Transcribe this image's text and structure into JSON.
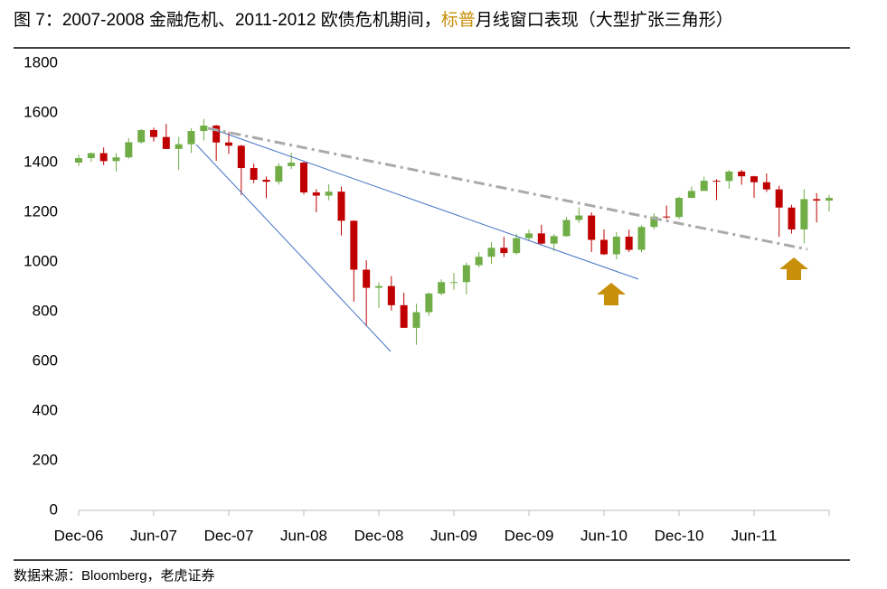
{
  "chart_data": {
    "type": "candlestick",
    "title_parts": [
      "图 7：2007-2008 金融危机、2011-2012 欧债危机期间，",
      "标普",
      "月线窗口表现（大型扩张三角形）"
    ],
    "title_highlight_color": "#c8900a",
    "source": "数据来源：Bloomberg，老虎证券",
    "categories": [
      "Dec-06",
      null,
      null,
      null,
      null,
      null,
      "Jun-07",
      null,
      null,
      null,
      null,
      null,
      "Dec-07",
      null,
      null,
      null,
      null,
      null,
      "Jun-08",
      null,
      null,
      null,
      null,
      null,
      "Dec-08",
      null,
      null,
      null,
      null,
      null,
      "Jun-09",
      null,
      null,
      null,
      null,
      null,
      "Dec-09",
      null,
      null,
      null,
      null,
      null,
      "Jun-10",
      null,
      null,
      null,
      null,
      null,
      "Dec-10",
      null,
      null,
      null,
      null,
      null,
      "Jun-11",
      null,
      null,
      null,
      null,
      null,
      null
    ],
    "open": [
      1400,
      1418,
      1438,
      1406,
      1421,
      1482,
      1531,
      1503,
      1455,
      1474,
      1527,
      1549,
      1481,
      1468,
      1378,
      1331,
      1323,
      1386,
      1400,
      1280,
      1267,
      1283,
      1166,
      969,
      896,
      903,
      826,
      735,
      798,
      873,
      919,
      919,
      987,
      1021,
      1057,
      1036,
      1096,
      1115,
      1074,
      1104,
      1169,
      1187,
      1089,
      1031,
      1102,
      1049,
      1141,
      1183,
      1181,
      1258,
      1286,
      1327,
      1326,
      1364,
      1345,
      1321,
      1292,
      1219,
      1131,
      1253,
      1247
    ],
    "high": [
      1431,
      1441,
      1461,
      1438,
      1499,
      1535,
      1541,
      1556,
      1503,
      1539,
      1576,
      1552,
      1523,
      1471,
      1396,
      1344,
      1397,
      1440,
      1404,
      1293,
      1313,
      1303,
      1167,
      1007,
      918,
      943,
      876,
      832,
      877,
      930,
      956,
      997,
      1040,
      1080,
      1101,
      1113,
      1130,
      1150,
      1112,
      1181,
      1220,
      1200,
      1131,
      1120,
      1130,
      1148,
      1196,
      1227,
      1263,
      1303,
      1344,
      1333,
      1370,
      1371,
      1347,
      1356,
      1307,
      1230,
      1293,
      1277,
      1270
    ],
    "low": [
      1385,
      1403,
      1390,
      1364,
      1416,
      1476,
      1485,
      1454,
      1370,
      1439,
      1489,
      1407,
      1435,
      1270,
      1317,
      1257,
      1312,
      1374,
      1272,
      1200,
      1248,
      1107,
      840,
      741,
      815,
      805,
      735,
      667,
      783,
      866,
      888,
      869,
      978,
      992,
      1020,
      1029,
      1086,
      1071,
      1044,
      1101,
      1157,
      1040,
      1028,
      1011,
      1040,
      1039,
      1131,
      1173,
      1173,
      1257,
      1289,
      1249,
      1294,
      1311,
      1258,
      1282,
      1101,
      1114,
      1075,
      1159,
      1203
    ],
    "close": [
      1418,
      1438,
      1406,
      1421,
      1482,
      1531,
      1503,
      1455,
      1474,
      1527,
      1549,
      1481,
      1468,
      1378,
      1331,
      1323,
      1386,
      1400,
      1280,
      1267,
      1283,
      1166,
      969,
      896,
      903,
      826,
      735,
      798,
      873,
      919,
      919,
      987,
      1021,
      1057,
      1036,
      1096,
      1115,
      1074,
      1104,
      1169,
      1187,
      1089,
      1031,
      1102,
      1049,
      1141,
      1183,
      1181,
      1258,
      1286,
      1327,
      1326,
      1364,
      1345,
      1321,
      1292,
      1219,
      1131,
      1253,
      1247,
      1258
    ],
    "up_color": "#70ad47",
    "down_color": "#c00000",
    "ylim": [
      0,
      1800
    ],
    "yticks": [
      0,
      200,
      400,
      600,
      800,
      1000,
      1200,
      1400,
      1600,
      1800
    ]
  }
}
